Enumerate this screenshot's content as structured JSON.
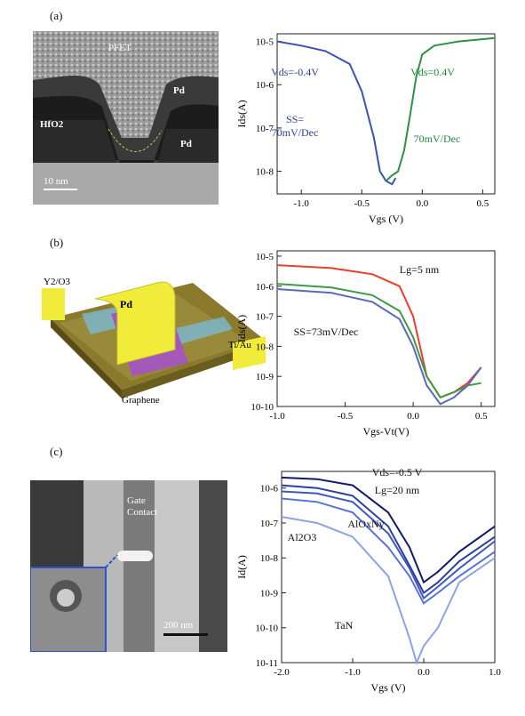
{
  "panels": [
    {
      "label": "(a)"
    },
    {
      "label": "(b)"
    },
    {
      "label": "(c)"
    }
  ],
  "images": {
    "tem_a": {
      "labels": [
        "PFET",
        "Pd",
        "Pd",
        "HfO2"
      ],
      "scale": "10 nm"
    },
    "schematic_b": {
      "labels": [
        "Y2/O3",
        "Pd",
        "Ti/Au",
        "Graphene"
      ]
    },
    "sem_c": {
      "labels": [
        "Gate",
        "Contact"
      ],
      "scale": "200 nm"
    }
  },
  "chart_data": [
    {
      "type": "line",
      "xlabel": "Vgs (V)",
      "ylabel": "Ids(A)",
      "xlim": [
        -1.2,
        0.6
      ],
      "ylim": [
        3e-09,
        1.5e-05
      ],
      "log_y": true,
      "xticks": [
        "-1.0",
        "-0.5",
        "0.0",
        "0.5"
      ],
      "yticks": [
        "10-8",
        "10-7",
        "10-6",
        "10-5"
      ],
      "annotations": [
        "Vds=-0.4V",
        "SS=",
        "70mV/Dec",
        "Vds=0.4V",
        "70mV/Dec"
      ],
      "series": [
        {
          "name": "Vds=-0.4V",
          "color": "#3a53b3",
          "x": [
            -1.2,
            -1.0,
            -0.8,
            -0.6,
            -0.5,
            -0.4,
            -0.35,
            -0.3,
            -0.25,
            -0.22
          ],
          "y": [
            1e-05,
            8e-06,
            6e-06,
            3e-06,
            7e-07,
            6e-08,
            1e-08,
            6e-09,
            5e-09,
            7e-09
          ]
        },
        {
          "name": "Vds=0.4V",
          "color": "#2e9146",
          "x": [
            -0.3,
            -0.25,
            -0.2,
            -0.15,
            -0.1,
            -0.05,
            0.0,
            0.1,
            0.3,
            0.6
          ],
          "y": [
            6e-09,
            8e-09,
            1e-08,
            3e-08,
            2e-07,
            1.5e-06,
            5e-06,
            8e-06,
            1e-05,
            1.2e-05
          ]
        }
      ]
    },
    {
      "type": "line",
      "xlabel": "Vgs-Vt(V)",
      "ylabel": "Ids(A)",
      "xlim": [
        -1.0,
        0.6
      ],
      "ylim": [
        1e-10,
        1.5e-05
      ],
      "log_y": true,
      "xticks": [
        "-1.0",
        "-0.5",
        "0.0",
        "0.5"
      ],
      "yticks": [
        "10-10",
        "10-9",
        "10-8",
        "10-7",
        "10-6",
        "10-5"
      ],
      "annotations": [
        "Lg=5 nm",
        "SS=73mV/Dec"
      ],
      "series": [
        {
          "color": "#e8402a",
          "x": [
            -1.0,
            -0.6,
            -0.3,
            -0.1,
            0.0,
            0.05,
            0.1,
            0.2,
            0.3,
            0.4,
            0.5
          ],
          "y": [
            5e-06,
            4e-06,
            2.5e-06,
            1e-06,
            1e-07,
            1e-08,
            1e-09,
            2e-10,
            3e-10,
            6e-10,
            2e-09
          ]
        },
        {
          "color": "#3e9a45",
          "x": [
            -1.0,
            -0.6,
            -0.3,
            -0.1,
            0.0,
            0.1,
            0.2,
            0.3,
            0.4,
            0.5
          ],
          "y": [
            1.2e-06,
            9e-07,
            5e-07,
            1.5e-07,
            2e-08,
            1e-09,
            2e-10,
            3e-10,
            5e-10,
            6e-10
          ]
        },
        {
          "color": "#5a6ab8",
          "x": [
            -1.0,
            -0.6,
            -0.3,
            -0.1,
            0.0,
            0.1,
            0.2,
            0.3,
            0.4,
            0.5
          ],
          "y": [
            8e-07,
            6e-07,
            3e-07,
            8e-08,
            1e-08,
            5e-10,
            1.2e-10,
            2e-10,
            5e-10,
            2e-09
          ]
        }
      ]
    },
    {
      "type": "line",
      "xlabel": "Vgs (V)",
      "ylabel": "Id(A)",
      "xlim": [
        -2.0,
        1.0
      ],
      "ylim": [
        1e-11,
        3e-06
      ],
      "log_y": true,
      "xticks": [
        "-2.0",
        "-1.0",
        "0.0",
        "1.0"
      ],
      "yticks": [
        "10-11",
        "10-10",
        "10-9",
        "10-8",
        "10-7",
        "10-6"
      ],
      "annotations": [
        "Vds=-0.5 V",
        "Lg=20 nm",
        "Al2O3",
        "AlOxNy",
        "TaN"
      ],
      "series": [
        {
          "color": "#101a66",
          "x": [
            -2.0,
            -1.5,
            -1.0,
            -0.5,
            -0.2,
            0.0,
            0.2,
            0.5,
            1.0
          ],
          "y": [
            2e-06,
            1.8e-06,
            1.2e-06,
            2e-07,
            2e-08,
            2e-09,
            4e-09,
            1.5e-08,
            8e-08
          ]
        },
        {
          "color": "#2c3f9e",
          "x": [
            -2.0,
            -1.5,
            -1.0,
            -0.5,
            -0.2,
            0.0,
            0.2,
            0.5,
            1.0
          ],
          "y": [
            1.2e-06,
            1e-06,
            6e-07,
            8e-08,
            6e-09,
            1e-09,
            2e-09,
            8e-09,
            4e-08
          ]
        },
        {
          "color": "#3f56c0",
          "x": [
            -2.0,
            -1.5,
            -1.0,
            -0.5,
            -0.2,
            0.0,
            0.2,
            0.5,
            1.0
          ],
          "y": [
            8e-07,
            7e-07,
            4e-07,
            5e-08,
            5e-09,
            7e-10,
            1.5e-09,
            5e-09,
            3e-08
          ]
        },
        {
          "color": "#5a72d4",
          "x": [
            -2.0,
            -1.5,
            -1.0,
            -0.5,
            -0.2,
            0.0,
            0.2,
            0.5,
            1.0
          ],
          "y": [
            5e-07,
            4e-07,
            2e-07,
            2e-08,
            3e-09,
            5e-10,
            1e-09,
            3e-09,
            1.5e-08
          ]
        },
        {
          "color": "#8da4e4",
          "x": [
            -2.0,
            -1.5,
            -1.0,
            -0.5,
            -0.2,
            -0.1,
            0.0,
            0.2,
            0.5,
            1.0
          ],
          "y": [
            1.5e-07,
            1e-07,
            4e-08,
            3e-09,
            5e-11,
            1e-11,
            3e-11,
            1e-10,
            2e-09,
            1e-08
          ]
        }
      ]
    }
  ]
}
